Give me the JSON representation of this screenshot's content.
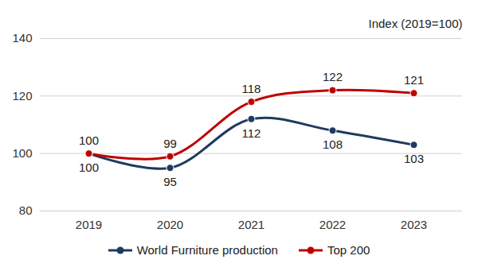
{
  "chart_data": {
    "type": "line",
    "ylabel": "Index (2019=100)",
    "categories": [
      "2019",
      "2020",
      "2021",
      "2022",
      "2023"
    ],
    "series": [
      {
        "name": "World Furniture production",
        "color": "#1f3a60",
        "values": [
          100,
          95,
          112,
          108,
          103
        ]
      },
      {
        "name": "Top 200",
        "color": "#c00000",
        "values": [
          100,
          99,
          118,
          122,
          121
        ]
      }
    ],
    "ylim": [
      80,
      140
    ],
    "yticks": [
      80,
      100,
      120,
      140
    ],
    "grid": true,
    "data_labels": true,
    "legend": "bottom",
    "marker": "circle",
    "line_style": "solid"
  }
}
